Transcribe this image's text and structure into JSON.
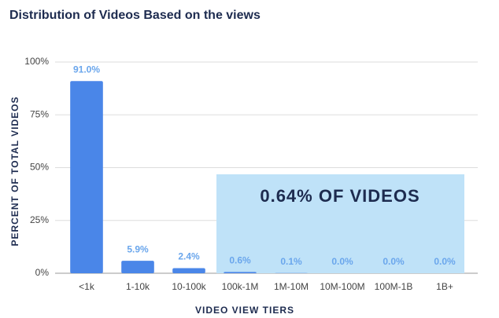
{
  "chart_data": {
    "type": "bar",
    "title": "Distribution of Videos Based on the views",
    "y_label": "PERCENT OF TOTAL VIDEOS",
    "x_label": "VIDEO VIEW TIERS",
    "annotation": "0.64% OF VIDEOS",
    "categories": [
      "<1k",
      "1-10k",
      "10-100k",
      "100k-1M",
      "1M-10M",
      "10M-100M",
      "100M-1B",
      "1B+"
    ],
    "values": [
      91.0,
      5.9,
      2.4,
      0.6,
      0.1,
      0.0,
      0.0,
      0.0
    ],
    "value_labels": [
      "91.0%",
      "5.9%",
      "2.4%",
      "0.6%",
      "0.1%",
      "0.0%",
      "0.0%",
      "0.0%"
    ],
    "color": "#4a86e8",
    "ylim": [
      0,
      100
    ],
    "yticks": [
      {
        "value": 0,
        "label": "0%"
      },
      {
        "value": 25,
        "label": "25%"
      },
      {
        "value": 50,
        "label": "50%"
      },
      {
        "value": 75,
        "label": "75%"
      },
      {
        "value": 100,
        "label": "100%"
      }
    ],
    "grid": true
  }
}
